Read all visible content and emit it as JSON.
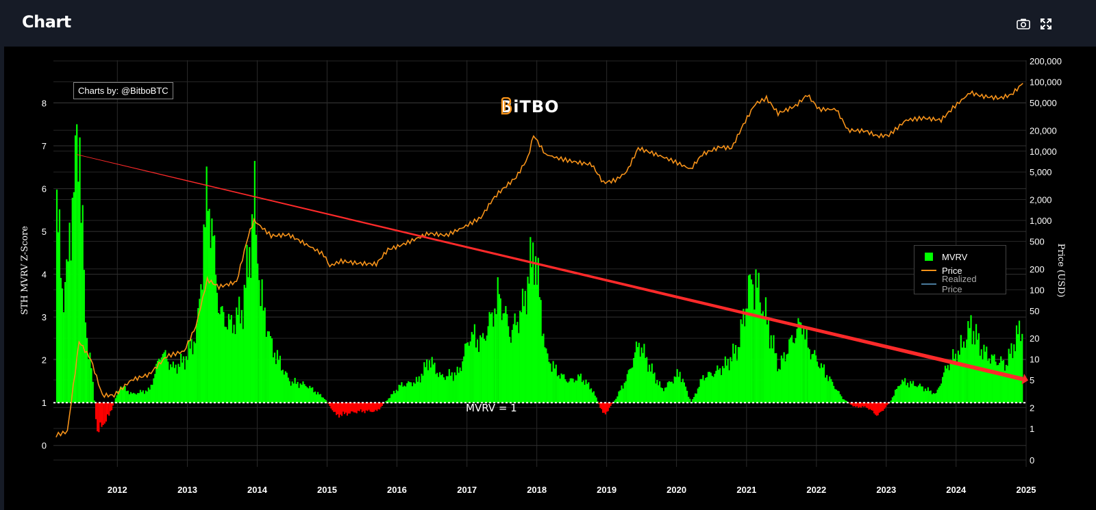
{
  "header": {
    "title": "Chart",
    "camera_icon": "camera-icon",
    "fullscreen_icon": "expand-icon"
  },
  "credit": "Charts by: @BitboBTC",
  "brand": {
    "text": "BiTBO",
    "color": "#f7931a"
  },
  "annotation": "MVRV = 1",
  "colors": {
    "mvrv_above": "#00ff00",
    "mvrv_below": "#ff0000",
    "price": "#f7931a",
    "realized": "#4a7b9d",
    "trend_arrow": "#ff2a2a",
    "baseline": "#ffffff"
  },
  "chart_data": {
    "type": "area",
    "title": "",
    "xlabel": "",
    "ylabel": "STH MVRV Z-Score",
    "y2label": "Price (USD)",
    "xlim": [
      "2011-02-01",
      "2025-01-01"
    ],
    "ylim": [
      -0.5,
      9
    ],
    "y2_scale": "log",
    "x_ticks": [
      "2012",
      "2013",
      "2014",
      "2015",
      "2016",
      "2017",
      "2018",
      "2019",
      "2020",
      "2021",
      "2022",
      "2023",
      "2024",
      "2025"
    ],
    "y_ticks": [
      "0",
      "1",
      "2",
      "3",
      "4",
      "5",
      "6",
      "7",
      "8"
    ],
    "y2_ticks": [
      "0",
      "1",
      "2",
      "5",
      "10",
      "20",
      "50",
      "100",
      "200",
      "500",
      "1,000",
      "2,000",
      "5,000",
      "10,000",
      "20,000",
      "50,000",
      "100,000",
      "200,000"
    ],
    "grid": true,
    "legend_position": "right",
    "legend": [
      "MVRV",
      "Price",
      "Realized Price"
    ],
    "baseline": 1,
    "trend_line": {
      "from": [
        "2011-06-01",
        6.8
      ],
      "to": [
        "2024-12-15",
        1.55
      ]
    },
    "series": [
      {
        "name": "MVRV",
        "axis": "left",
        "x": [
          "2011-02",
          "2011-03",
          "2011-04",
          "2011-05",
          "2011-06",
          "2011-07",
          "2011-08",
          "2011-09",
          "2011-10",
          "2011-11",
          "2012-01",
          "2012-03",
          "2012-06",
          "2012-08",
          "2012-10",
          "2012-12",
          "2013-02",
          "2013-04",
          "2013-06",
          "2013-08",
          "2013-10",
          "2013-12",
          "2014-01",
          "2014-03",
          "2014-06",
          "2014-09",
          "2014-12",
          "2015-02",
          "2015-06",
          "2015-09",
          "2015-11",
          "2016-01",
          "2016-04",
          "2016-06",
          "2016-08",
          "2016-11",
          "2017-01",
          "2017-03",
          "2017-05",
          "2017-06",
          "2017-08",
          "2017-10",
          "2017-12",
          "2018-02",
          "2018-04",
          "2018-06",
          "2018-08",
          "2018-10",
          "2018-12",
          "2019-02",
          "2019-04",
          "2019-06",
          "2019-08",
          "2019-10",
          "2020-01",
          "2020-03",
          "2020-05",
          "2020-07",
          "2020-09",
          "2020-11",
          "2021-01",
          "2021-02",
          "2021-04",
          "2021-06",
          "2021-08",
          "2021-10",
          "2021-11",
          "2022-01",
          "2022-03",
          "2022-05",
          "2022-07",
          "2022-09",
          "2022-11",
          "2023-01",
          "2023-03",
          "2023-06",
          "2023-09",
          "2023-11",
          "2024-01",
          "2024-03",
          "2024-05",
          "2024-07",
          "2024-09",
          "2024-11",
          "2024-12"
        ],
        "values": [
          5.8,
          3.5,
          4.2,
          6.3,
          7.2,
          2.8,
          1.8,
          0.3,
          0.5,
          0.7,
          1.4,
          1.2,
          1.3,
          2.2,
          1.8,
          2.0,
          2.6,
          6.0,
          3.1,
          2.8,
          3.2,
          5.6,
          3.5,
          2.3,
          1.5,
          1.4,
          1.1,
          0.7,
          0.8,
          0.8,
          1.1,
          1.4,
          1.5,
          2.0,
          1.6,
          1.7,
          2.6,
          2.4,
          3.1,
          3.5,
          2.6,
          3.2,
          4.6,
          2.1,
          1.7,
          1.5,
          1.6,
          1.3,
          0.7,
          1.1,
          1.6,
          2.4,
          1.8,
          1.3,
          1.7,
          1.0,
          1.6,
          1.7,
          1.9,
          2.3,
          3.8,
          3.8,
          2.9,
          1.8,
          2.4,
          2.9,
          2.3,
          1.9,
          1.5,
          1.1,
          0.9,
          0.9,
          0.7,
          1.0,
          1.5,
          1.4,
          1.2,
          1.9,
          2.2,
          2.8,
          2.2,
          2.0,
          1.9,
          2.6,
          2.8
        ]
      },
      {
        "name": "Price",
        "axis": "right",
        "x": [
          "2011-02",
          "2011-04",
          "2011-06",
          "2011-08",
          "2011-10",
          "2011-12",
          "2012-03",
          "2012-06",
          "2012-09",
          "2012-12",
          "2013-02",
          "2013-04",
          "2013-06",
          "2013-09",
          "2013-11",
          "2013-12",
          "2014-03",
          "2014-06",
          "2014-09",
          "2014-12",
          "2015-01",
          "2015-03",
          "2015-06",
          "2015-09",
          "2015-11",
          "2016-01",
          "2016-06",
          "2016-09",
          "2016-12",
          "2017-03",
          "2017-05",
          "2017-06",
          "2017-09",
          "2017-11",
          "2017-12",
          "2018-02",
          "2018-04",
          "2018-07",
          "2018-10",
          "2018-12",
          "2019-02",
          "2019-04",
          "2019-06",
          "2019-09",
          "2019-12",
          "2020-03",
          "2020-05",
          "2020-08",
          "2020-10",
          "2020-12",
          "2021-02",
          "2021-04",
          "2021-06",
          "2021-09",
          "2021-11",
          "2022-01",
          "2022-04",
          "2022-06",
          "2022-09",
          "2022-11",
          "2023-01",
          "2023-04",
          "2023-07",
          "2023-10",
          "2023-12",
          "2024-03",
          "2024-05",
          "2024-08",
          "2024-10",
          "2024-12"
        ],
        "values": [
          0.8,
          0.9,
          18,
          10,
          3,
          3,
          5,
          6,
          11,
          13,
          30,
          140,
          110,
          130,
          600,
          1000,
          600,
          620,
          450,
          320,
          220,
          260,
          240,
          235,
          380,
          430,
          650,
          610,
          800,
          1100,
          2000,
          2500,
          4200,
          8000,
          17000,
          9000,
          8000,
          7000,
          6400,
          3500,
          3800,
          5000,
          11000,
          9000,
          7200,
          5500,
          9000,
          11500,
          11000,
          24000,
          48000,
          58000,
          35000,
          45000,
          65000,
          40000,
          40000,
          20000,
          19500,
          16500,
          17000,
          28000,
          30000,
          28000,
          42000,
          70000,
          62000,
          58000,
          65000,
          95000
        ]
      },
      {
        "name": "Realized Price",
        "axis": "right",
        "x": [],
        "values": []
      }
    ]
  }
}
